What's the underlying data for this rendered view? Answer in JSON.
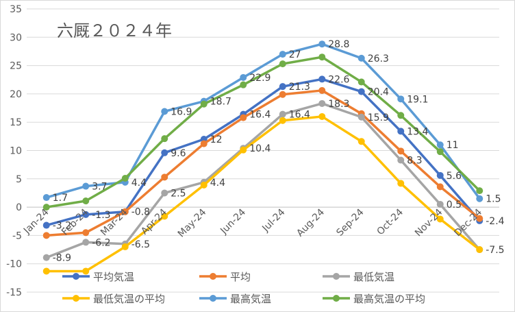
{
  "chart_data": {
    "type": "line",
    "title": "六厩２０２４年",
    "categories": [
      "Jan-24",
      "Feb-24",
      "Mar-24",
      "Apr-24",
      "May-24",
      "Jun-24",
      "Jul-24",
      "Aug-24",
      "Sep-24",
      "Oct-24",
      "Nov-24",
      "Dec-24"
    ],
    "ylim": [
      -15,
      35
    ],
    "yticks": [
      35,
      30,
      25,
      20,
      15,
      10,
      5,
      0,
      -5,
      -10,
      -15
    ],
    "grid": true,
    "legend_position": "bottom",
    "series": [
      {
        "name": "平均気温",
        "color": "#4472c4",
        "values": [
          -3.2,
          -1.3,
          -0.8,
          9.6,
          12.0,
          16.4,
          21.3,
          22.6,
          20.4,
          13.4,
          5.6,
          -2.4
        ]
      },
      {
        "name": "平均",
        "color": "#ed7d31",
        "values": [
          -5.0,
          -4.5,
          -0.8,
          5.3,
          11.2,
          15.8,
          19.9,
          20.6,
          16.5,
          9.9,
          3.6,
          -2.0
        ]
      },
      {
        "name": "最低気温",
        "color": "#a5a5a5",
        "values": [
          -8.9,
          -6.2,
          -6.5,
          2.5,
          4.4,
          10.4,
          16.4,
          18.3,
          15.9,
          8.3,
          0.5,
          -7.5
        ]
      },
      {
        "name": "最低気温の平均",
        "color": "#ffc000",
        "values": [
          -11.3,
          -11.3,
          -7.0,
          -1.6,
          3.9,
          10.1,
          15.3,
          16.0,
          11.6,
          4.2,
          -2.1,
          -7.5
        ]
      },
      {
        "name": "最高気温",
        "color": "#5b9bd5",
        "values": [
          1.7,
          3.7,
          4.4,
          16.9,
          18.7,
          22.9,
          27.0,
          28.8,
          26.3,
          19.1,
          11.0,
          1.5
        ]
      },
      {
        "name": "最高気温の平均",
        "color": "#70ad47",
        "values": [
          0.0,
          1.1,
          5.1,
          12.1,
          18.2,
          21.6,
          25.3,
          26.5,
          22.1,
          16.2,
          9.8,
          2.9
        ]
      }
    ],
    "data_labels": {
      "平均気温": [
        "-3.2",
        "-1.3",
        "-0.8",
        "9.6",
        "12",
        "16.4",
        "21.3",
        "22.6",
        "20.4",
        "13.4",
        "5.6",
        "-2.4"
      ],
      "最低気温": [
        "-8.9",
        "-6.2",
        "-6.5",
        "2.5",
        "4.4",
        "10.4",
        "16.4",
        "18.3",
        "15.9",
        "8.3",
        "0.5",
        "-7.5"
      ],
      "最高気温": [
        "1.7",
        "3.7",
        "4.4",
        "16.9",
        "18.7",
        "22.9",
        "27",
        "28.8",
        "26.3",
        "19.1",
        "11",
        "1.5"
      ]
    }
  }
}
